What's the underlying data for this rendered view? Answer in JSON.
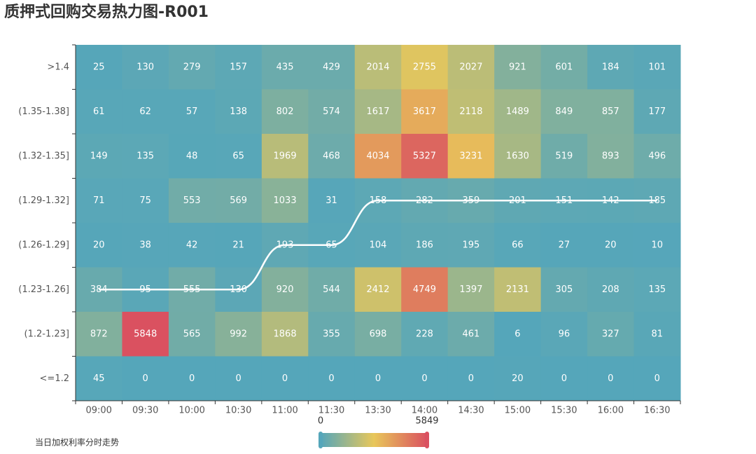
{
  "chart_data": {
    "type": "heatmap",
    "title": "质押式回购交易热力图-R001",
    "x": [
      "09:00",
      "09:30",
      "10:00",
      "10:30",
      "11:00",
      "11:30",
      "13:30",
      "14:00",
      "14:30",
      "15:00",
      "15:30",
      "16:00",
      "16:30"
    ],
    "y_categories": [
      ">1.4",
      "(1.35-1.38]",
      "(1.32-1.35]",
      "(1.29-1.32]",
      "(1.26-1.29]",
      "(1.23-1.26]",
      "(1.2-1.23]",
      "<=1.2"
    ],
    "values": [
      [
        25,
        130,
        279,
        157,
        435,
        429,
        2014,
        2755,
        2027,
        921,
        601,
        184,
        101
      ],
      [
        61,
        62,
        57,
        138,
        802,
        574,
        1617,
        3617,
        2118,
        1489,
        849,
        857,
        177
      ],
      [
        149,
        135,
        48,
        65,
        1969,
        468,
        4034,
        5327,
        3231,
        1630,
        519,
        893,
        496
      ],
      [
        71,
        75,
        553,
        569,
        1033,
        31,
        158,
        282,
        359,
        201,
        151,
        142,
        185
      ],
      [
        20,
        38,
        42,
        21,
        193,
        65,
        104,
        186,
        195,
        66,
        27,
        20,
        10
      ],
      [
        384,
        95,
        555,
        130,
        920,
        544,
        2412,
        4749,
        1397,
        2131,
        305,
        208,
        135
      ],
      [
        872,
        5848,
        565,
        992,
        1868,
        355,
        698,
        228,
        461,
        6,
        96,
        327,
        81
      ],
      [
        45,
        0,
        0,
        0,
        0,
        0,
        0,
        0,
        0,
        20,
        0,
        0,
        0
      ]
    ],
    "visual_map": {
      "min": 0,
      "max": 5849,
      "colors": [
        "#55a6ba",
        "#e8c75a",
        "#da5160"
      ]
    },
    "line": {
      "name": "当日加权利率分时走势",
      "color": "#ffffff",
      "values": [
        "(1.23-1.26]",
        "(1.23-1.26]",
        "(1.23-1.26]",
        "(1.23-1.26]",
        "(1.26-1.29]",
        "(1.26-1.29]",
        "(1.29-1.32]",
        "(1.29-1.32]",
        "(1.29-1.32]",
        "(1.29-1.32]",
        "(1.29-1.32]",
        "(1.29-1.32]",
        "(1.29-1.32]"
      ]
    }
  }
}
